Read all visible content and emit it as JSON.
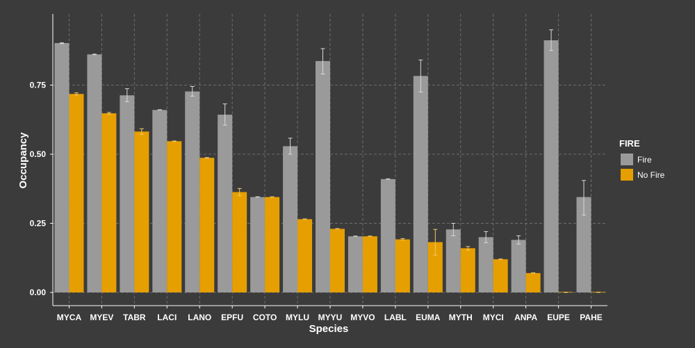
{
  "chart_data": {
    "type": "bar",
    "xlabel": "Species",
    "ylabel": "Occupancy",
    "ylim": [
      -0.05,
      1.0
    ],
    "yticks": [
      "0.00",
      "0.25",
      "0.50",
      "0.75"
    ],
    "ytick_values": [
      0,
      0.25,
      0.5,
      0.75
    ],
    "grid": true,
    "legend_title": "FIRE",
    "legend_position": "right",
    "categories": [
      "MYCA",
      "MYEV",
      "TABR",
      "LACI",
      "LANO",
      "EPFU",
      "COTO",
      "MYLU",
      "MYYU",
      "MYVO",
      "LABL",
      "EUMA",
      "MYTH",
      "MYCI",
      "ANPA",
      "EUPE",
      "PAHE"
    ],
    "series": [
      {
        "name": "Fire",
        "color": "#9a9a9a",
        "values": [
          0.902,
          0.861,
          0.713,
          0.66,
          0.727,
          0.643,
          0.345,
          0.529,
          0.837,
          0.203,
          0.41,
          0.783,
          0.228,
          0.2,
          0.19,
          0.912,
          0.345
        ],
        "err_low": [
          0.9,
          0.86,
          0.69,
          0.66,
          0.71,
          0.605,
          0.345,
          0.5,
          0.79,
          0.203,
          0.41,
          0.725,
          0.205,
          0.18,
          0.175,
          0.875,
          0.28
        ],
        "err_high": [
          0.903,
          0.862,
          0.737,
          0.661,
          0.745,
          0.682,
          0.346,
          0.558,
          0.882,
          0.204,
          0.411,
          0.841,
          0.25,
          0.22,
          0.205,
          0.95,
          0.405
        ]
      },
      {
        "name": "No Fire",
        "color": "#e69f00",
        "values": [
          0.718,
          0.648,
          0.582,
          0.547,
          0.487,
          0.363,
          0.345,
          0.265,
          0.23,
          0.203,
          0.192,
          0.182,
          0.16,
          0.12,
          0.07,
          0.0,
          0.0
        ],
        "err_low": [
          0.714,
          0.645,
          0.572,
          0.546,
          0.486,
          0.35,
          0.345,
          0.265,
          0.23,
          0.203,
          0.19,
          0.135,
          0.153,
          0.12,
          0.07,
          0.0,
          0.0
        ],
        "err_high": [
          0.722,
          0.651,
          0.592,
          0.548,
          0.488,
          0.376,
          0.346,
          0.266,
          0.231,
          0.204,
          0.195,
          0.228,
          0.166,
          0.121,
          0.071,
          0.001,
          0.001
        ]
      }
    ]
  }
}
